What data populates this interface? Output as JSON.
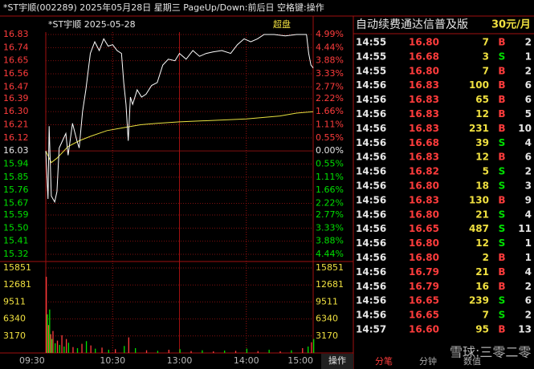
{
  "header": {
    "title": "*ST宇顺(002289) 2025年05月28日 星期三 PageUp/Down:前后日 空格键:操作"
  },
  "chart": {
    "type": "line",
    "label": "*ST宇顺 2025-05-28",
    "badge": "超盘",
    "xlim": [
      0,
      240
    ],
    "ylim": [
      15.32,
      16.83
    ],
    "price_ticks": [
      16.83,
      16.74,
      16.65,
      16.56,
      16.47,
      16.39,
      {
        "value": 16.3,
        "label": "16.30"
      },
      16.21,
      16.12,
      16.03,
      15.94,
      15.85,
      15.76,
      15.67,
      15.59,
      {
        "value": 15.5,
        "label": "15.50"
      },
      15.41,
      15.32
    ],
    "pct_ticks": [
      "4.99%",
      "4.44%",
      "3.88%",
      "3.33%",
      "2.77%",
      "2.22%",
      "1.66%",
      "1.11%",
      "0.55%",
      "0.00%",
      "0.55%",
      "1.11%",
      "1.66%",
      "2.22%",
      "2.77%",
      "3.33%",
      "3.88%",
      "4.44%"
    ],
    "vol_lim": [
      0,
      15851
    ],
    "vol_ticks": [
      15851,
      12681,
      9511,
      6340,
      3170
    ],
    "time_labels": {
      "labels": [
        "09:30",
        "10:30",
        "13:00",
        "14:00",
        "15:00"
      ],
      "x": [
        0,
        60,
        120,
        180,
        240
      ]
    },
    "price": {
      "x": [
        0,
        2,
        3,
        5,
        8,
        10,
        12,
        15,
        18,
        20,
        24,
        28,
        30,
        33,
        36,
        40,
        44,
        48,
        52,
        56,
        60,
        64,
        68,
        70,
        72,
        74,
        76,
        78,
        82,
        86,
        90,
        95,
        100,
        105,
        110,
        116,
        120,
        126,
        132,
        138,
        144,
        150,
        158,
        166,
        172,
        178,
        184,
        190,
        196,
        205,
        215,
        225,
        234,
        236,
        238,
        240
      ],
      "values": [
        16.03,
        15.7,
        16.2,
        15.72,
        15.68,
        15.75,
        16.05,
        16.1,
        16.15,
        16.0,
        16.22,
        16.1,
        16.05,
        16.3,
        16.45,
        16.7,
        16.78,
        16.72,
        16.8,
        16.75,
        16.76,
        16.72,
        16.7,
        16.5,
        16.35,
        16.1,
        16.4,
        16.35,
        16.45,
        16.4,
        16.42,
        16.48,
        16.5,
        16.62,
        16.66,
        16.65,
        16.7,
        16.66,
        16.72,
        16.68,
        16.7,
        16.71,
        16.72,
        16.7,
        16.76,
        16.8,
        16.78,
        16.8,
        16.83,
        16.83,
        16.82,
        16.83,
        16.83,
        16.7,
        16.62,
        16.6
      ],
      "color": "#ffffff"
    },
    "avg": {
      "x": [
        0,
        5,
        10,
        20,
        30,
        40,
        55,
        70,
        85,
        100,
        120,
        150,
        180,
        210,
        225,
        240
      ],
      "values": [
        16.03,
        15.95,
        15.98,
        16.06,
        16.1,
        16.13,
        16.17,
        16.19,
        16.21,
        16.22,
        16.23,
        16.24,
        16.25,
        16.27,
        16.29,
        16.3
      ],
      "color": "#e8e040"
    },
    "volume": {
      "x": [
        0,
        1,
        2,
        3,
        4,
        5,
        6,
        8,
        10,
        12,
        14,
        16,
        18,
        20,
        24,
        28,
        32,
        36,
        40,
        44,
        50,
        56,
        62,
        70,
        74,
        80,
        90,
        100,
        110,
        120,
        130,
        140,
        150,
        160,
        170,
        180,
        190,
        200,
        210,
        220,
        230,
        235,
        238,
        240
      ],
      "values": [
        14200,
        7200,
        5200,
        8100,
        3500,
        2600,
        4100,
        1800,
        2300,
        1500,
        3300,
        1200,
        2600,
        1900,
        1100,
        900,
        1700,
        2200,
        1400,
        800,
        1000,
        600,
        700,
        1300,
        2900,
        900,
        500,
        400,
        600,
        700,
        350,
        500,
        300,
        450,
        400,
        800,
        350,
        600,
        300,
        500,
        900,
        1200,
        2000,
        2600
      ]
    }
  },
  "side_panel": {
    "title": "自动续费通达信普及版",
    "price_tag": "30元/月",
    "rows": [
      [
        "14:55",
        "16.80",
        "7",
        "B",
        "2"
      ],
      [
        "14:55",
        "16.68",
        "3",
        "S",
        "1"
      ],
      [
        "14:55",
        "16.80",
        "7",
        "B",
        "2"
      ],
      [
        "14:56",
        "16.83",
        "100",
        "B",
        "6"
      ],
      [
        "14:56",
        "16.83",
        "65",
        "B",
        "6"
      ],
      [
        "14:56",
        "16.83",
        "12",
        "B",
        "5"
      ],
      [
        "14:56",
        "16.83",
        "231",
        "B",
        "10"
      ],
      [
        "14:56",
        "16.68",
        "39",
        "S",
        "4"
      ],
      [
        "14:56",
        "16.83",
        "12",
        "B",
        "6"
      ],
      [
        "14:56",
        "16.82",
        "5",
        "S",
        "2"
      ],
      [
        "14:56",
        "16.80",
        "18",
        "S",
        "3"
      ],
      [
        "14:56",
        "16.83",
        "130",
        "B",
        "9"
      ],
      [
        "14:56",
        "16.80",
        "21",
        "S",
        "4"
      ],
      [
        "14:56",
        "16.65",
        "487",
        "S",
        "11"
      ],
      [
        "14:56",
        "16.80",
        "12",
        "S",
        "1"
      ],
      [
        "14:56",
        "16.80",
        "2",
        "B",
        "1"
      ],
      [
        "14:56",
        "16.79",
        "21",
        "B",
        "4"
      ],
      [
        "14:56",
        "16.79",
        "16",
        "B",
        "2"
      ],
      [
        "14:56",
        "16.65",
        "239",
        "S",
        "6"
      ],
      [
        "14:56",
        "16.65",
        "7",
        "S",
        "2"
      ],
      [
        "14:57",
        "16.60",
        "95",
        "B",
        "13"
      ]
    ]
  },
  "tabs": [
    "分笔",
    "分钟",
    "数值"
  ],
  "action": "操作",
  "watermark": "雪球:三零二零"
}
